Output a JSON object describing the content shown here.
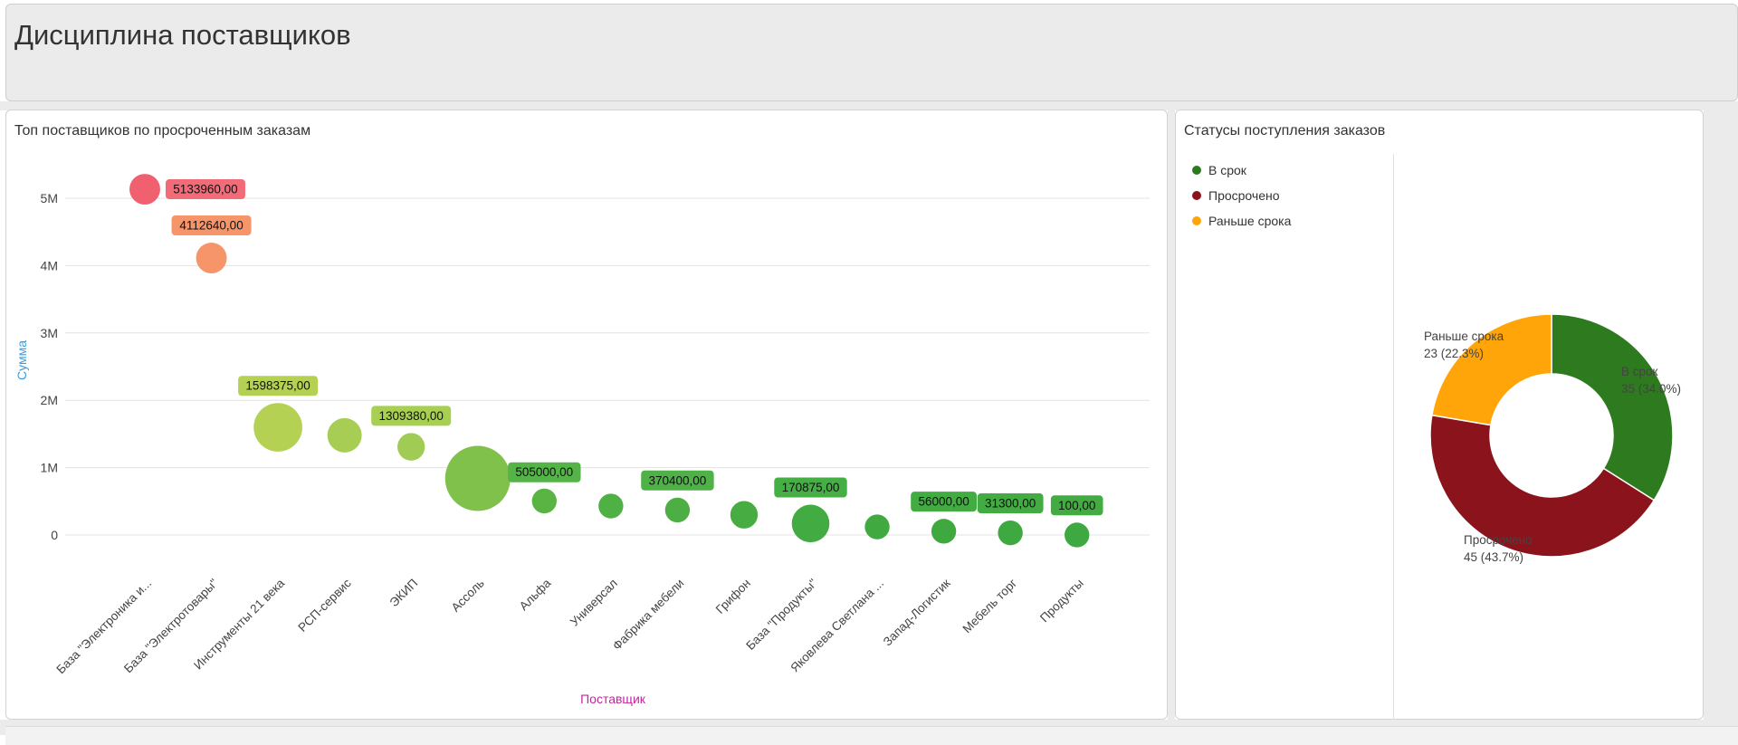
{
  "page": {
    "title": "Дисциплина поставщиков"
  },
  "bubble_panel": {
    "title": "Топ поставщиков по просроченным заказам"
  },
  "donut_panel": {
    "title": "Статусы поступления заказов"
  },
  "chart_data": [
    {
      "type": "scatter",
      "title": "Топ поставщиков по просроченным заказам",
      "xlabel": "Поставщик",
      "ylabel": "Сумма",
      "ylim": [
        0,
        5000000
      ],
      "yticks": [
        {
          "value": 0,
          "label": "0"
        },
        {
          "value": 1000000,
          "label": "1M"
        },
        {
          "value": 2000000,
          "label": "2M"
        },
        {
          "value": 3000000,
          "label": "3M"
        },
        {
          "value": 4000000,
          "label": "4M"
        },
        {
          "value": 5000000,
          "label": "5M"
        }
      ],
      "grid": true,
      "categories": [
        "База \"Электроника и...",
        "База \"Электротовары\"",
        "Инструменты 21 века",
        "РСП-сервис",
        "ЭКИП",
        "Ассоль",
        "Альфа",
        "Универсал",
        "Фабрика мебели",
        "Грифон",
        "База \"Продукты\"",
        "Яковлева Светлана ...",
        "Запад-Логистик",
        "Мебель торг",
        "Продукты"
      ],
      "points": [
        {
          "y": 5133960,
          "size": 2,
          "color": "#f0606e",
          "label": "5133960,00",
          "labelColor": "#f26b78"
        },
        {
          "y": 4112640,
          "size": 2,
          "color": "#f7956a",
          "label": "4112640,00",
          "labelColor": "#f7956a"
        },
        {
          "y": 1598375,
          "size": 5,
          "color": "#b5d154",
          "label": "1598375,00",
          "labelColor": "#b5d154"
        },
        {
          "y": 1480000,
          "size": 2.5,
          "color": "#a8cd55",
          "label": null
        },
        {
          "y": 1309380,
          "size": 1.6,
          "color": "#a0cb55",
          "label": "1309380,00",
          "labelColor": "#a7cf52"
        },
        {
          "y": 840000,
          "size": 9,
          "color": "#80c14c",
          "label": null
        },
        {
          "y": 505000,
          "size": 1.3,
          "color": "#5ab444",
          "label": "505000,00",
          "labelColor": "#55b448"
        },
        {
          "y": 430000,
          "size": 1.3,
          "color": "#4fb044",
          "label": null
        },
        {
          "y": 370400,
          "size": 1.3,
          "color": "#4cae43",
          "label": "370400,00",
          "labelColor": "#4fb148"
        },
        {
          "y": 300000,
          "size": 1.6,
          "color": "#47ad42",
          "label": null
        },
        {
          "y": 170875,
          "size": 3,
          "color": "#42ab41",
          "label": "170875,00",
          "labelColor": "#45ae45"
        },
        {
          "y": 120000,
          "size": 1.3,
          "color": "#40aa41",
          "label": null
        },
        {
          "y": 56000,
          "size": 1.3,
          "color": "#3fa940",
          "label": "56000,00",
          "labelColor": "#42ab42"
        },
        {
          "y": 31300,
          "size": 1.3,
          "color": "#3ea940",
          "label": "31300,00",
          "labelColor": "#42ab42"
        },
        {
          "y": 100,
          "size": 1.3,
          "color": "#3ea940",
          "label": "100,00",
          "labelColor": "#42ab42"
        }
      ]
    },
    {
      "type": "pie",
      "title": "Статусы поступления заказов",
      "donut": true,
      "legend_position": "top-left",
      "slices": [
        {
          "name": "В срок",
          "value": 35,
          "label": "35 (34.0%)",
          "color": "#2e7a1f"
        },
        {
          "name": "Просрочено",
          "value": 45,
          "label": "45 (43.7%)",
          "color": "#8b131c"
        },
        {
          "name": "Раньше срока",
          "value": 23,
          "label": "23 (22.3%)",
          "color": "#ffa50a"
        }
      ]
    }
  ]
}
